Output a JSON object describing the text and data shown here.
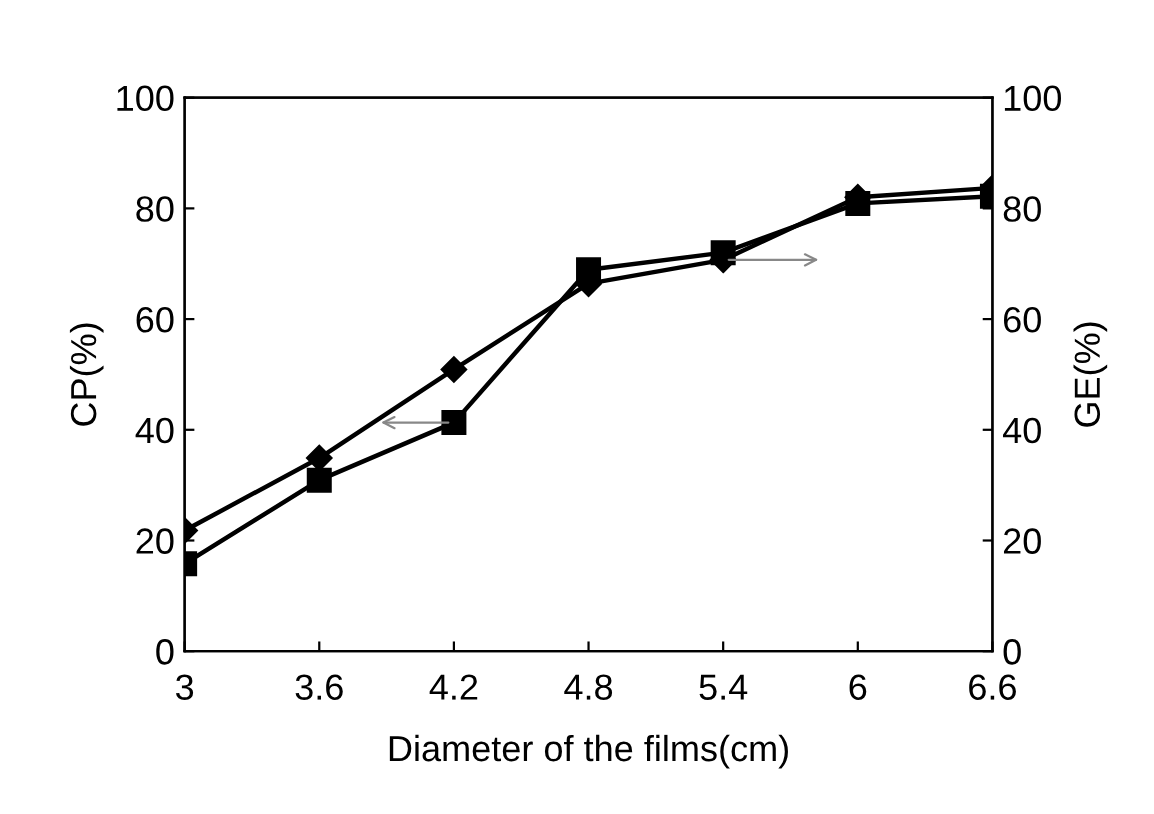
{
  "chart_data": {
    "type": "line",
    "xlabel": "Diameter of the films(cm)",
    "ylabel": "CP(%)",
    "y2label": "GE(%)",
    "x": [
      3,
      3.6,
      4.2,
      4.8,
      5.4,
      6,
      6.6
    ],
    "series": [
      {
        "color": "#000000",
        "marker": "square",
        "values": [
          15.8,
          30.9,
          41.3,
          68.9,
          72,
          80.9,
          82.2
        ]
      },
      {
        "color": "#000000",
        "marker": "diamond",
        "axis": "y2",
        "values": [
          21.8,
          34.9,
          50.9,
          66.4,
          70.7,
          82,
          83.7
        ]
      }
    ],
    "xlim": [
      3,
      6.6
    ],
    "xticks": [
      3,
      3.6,
      4.2,
      4.8,
      5.4,
      6,
      6.6
    ],
    "ylim": [
      0,
      100
    ],
    "yticks": [
      0,
      20,
      40,
      60,
      80,
      100
    ],
    "y2lim": [
      0,
      100
    ],
    "y2ticks": [
      0,
      20,
      40,
      60,
      80,
      100
    ],
    "grid": false,
    "legend": false,
    "line_style": "solid"
  }
}
